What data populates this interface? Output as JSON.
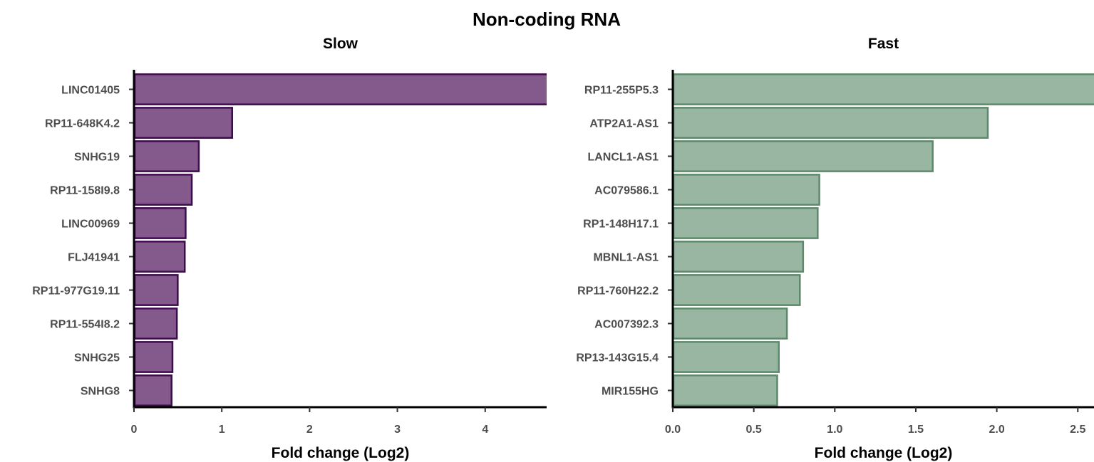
{
  "title": "Non-coding RNA",
  "colors": {
    "slow_fill": "#845a8d",
    "slow_stroke": "#3f0a4f",
    "fast_fill": "#99b6a2",
    "fast_stroke": "#5b8a6a"
  },
  "chart_data": [
    {
      "type": "bar",
      "orientation": "horizontal",
      "title": "Slow",
      "xlabel": "Fold change (Log2)",
      "xlim": [
        0,
        4.7
      ],
      "xticks": [
        0,
        1,
        2,
        3,
        4
      ],
      "xtick_labels": [
        "0",
        "1",
        "2",
        "3",
        "4"
      ],
      "categories": [
        "LINC01405",
        "RP11-648K4.2",
        "SNHG19",
        "RP11-158I9.8",
        "LINC00969",
        "FLJ41941",
        "RP11-977G19.11",
        "RP11-554I8.2",
        "SNHG25",
        "SNHG8"
      ],
      "values": [
        4.72,
        1.11,
        0.73,
        0.65,
        0.58,
        0.57,
        0.49,
        0.48,
        0.43,
        0.42
      ],
      "grid": false,
      "legend": "none"
    },
    {
      "type": "bar",
      "orientation": "horizontal",
      "title": "Fast",
      "xlabel": "Fold change (Log2)",
      "xlim": [
        0,
        2.6
      ],
      "xticks": [
        0,
        0.5,
        1,
        1.5,
        2,
        2.5
      ],
      "xtick_labels": [
        "0.0",
        "0.5",
        "1.0",
        "1.5",
        "2.0",
        "2.5"
      ],
      "categories": [
        "RP11-255P5.3",
        "ATP2A1-AS1",
        "LANCL1-AS1",
        "AC079586.1",
        "RP1-148H17.1",
        "MBNL1-AS1",
        "RP11-760H22.2",
        "AC007392.3",
        "RP13-143G15.4",
        "MIR155HG"
      ],
      "values": [
        2.62,
        1.94,
        1.6,
        0.9,
        0.89,
        0.8,
        0.78,
        0.7,
        0.65,
        0.64
      ],
      "grid": false,
      "legend": "none"
    }
  ]
}
